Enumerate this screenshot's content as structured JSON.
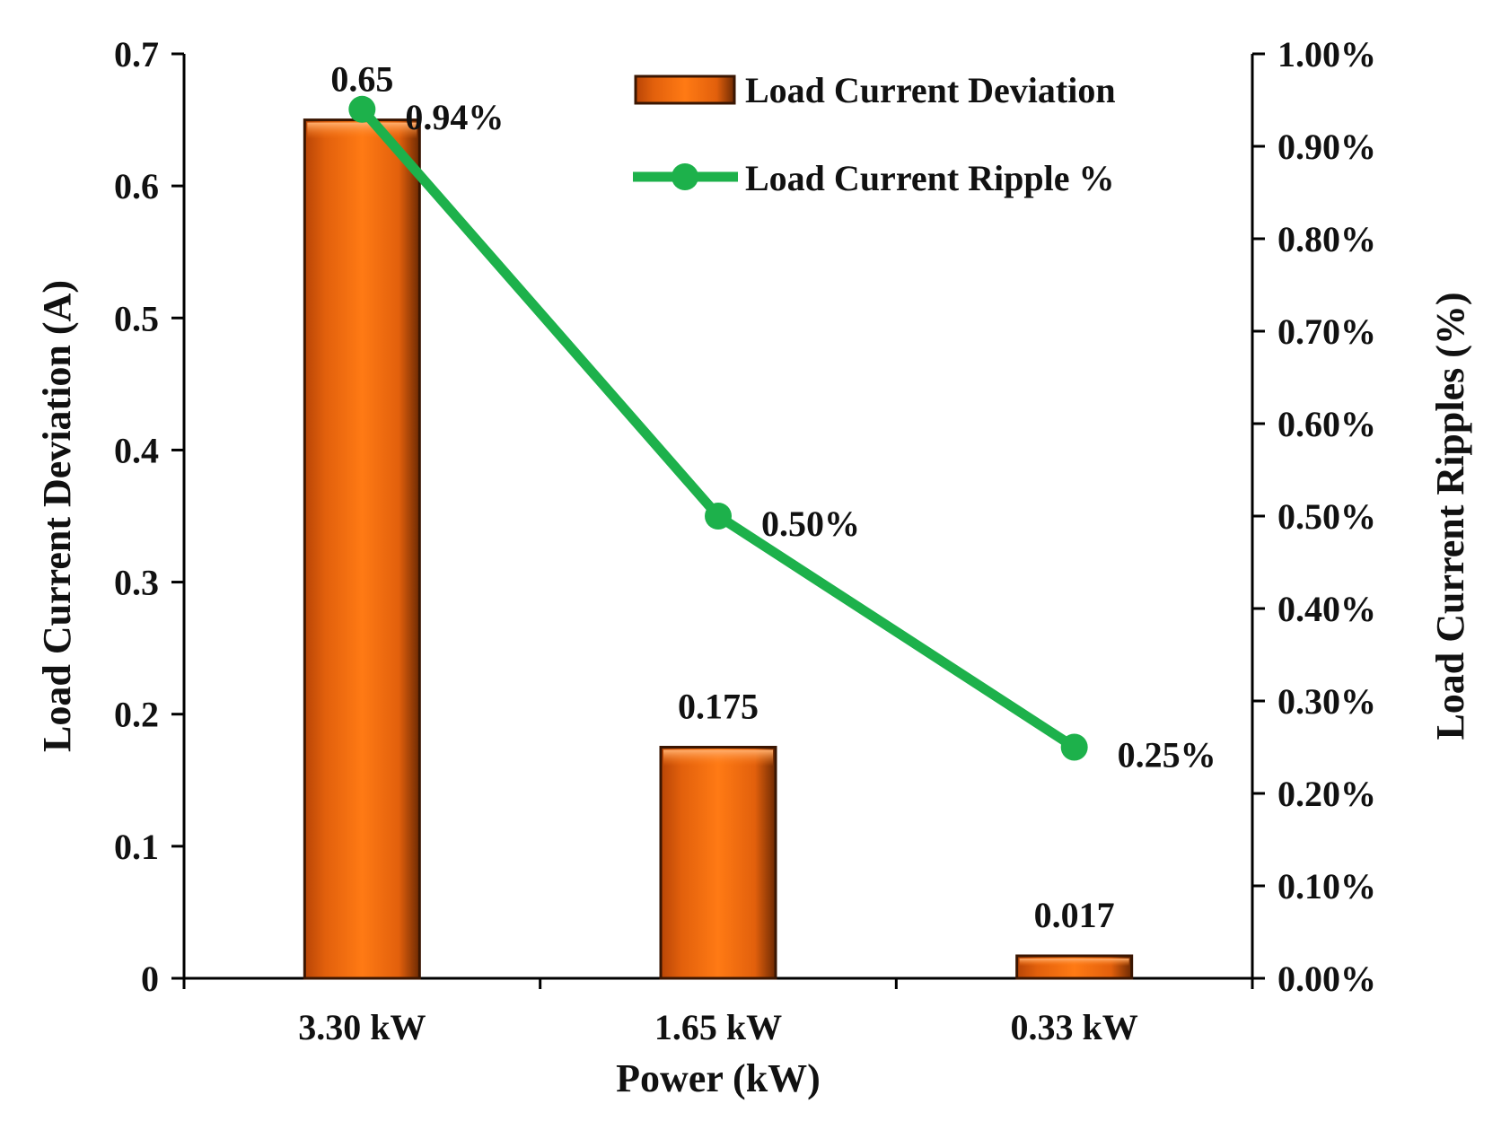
{
  "chart_data": {
    "type": "bar+line",
    "categories": [
      "3.30 kW",
      "1.65 kW",
      "0.33 kW"
    ],
    "xlabel": "Power (kW)",
    "series": [
      {
        "name": "Load Current Deviation",
        "type": "bar",
        "axis": "left",
        "values": [
          0.65,
          0.175,
          0.017
        ],
        "labels": [
          "0.65",
          "0.175",
          "0.017"
        ],
        "color": "#e8630a"
      },
      {
        "name": "Load Current Ripple %",
        "type": "line",
        "axis": "right",
        "values": [
          0.94,
          0.5,
          0.25
        ],
        "labels": [
          "0.94%",
          "0.50%",
          "0.25%"
        ],
        "color": "#1db14b"
      }
    ],
    "left_axis": {
      "label": "Load Current  Deviation (A)",
      "range": [
        0,
        0.7
      ],
      "ticks": [
        "0",
        "0.1",
        "0.2",
        "0.3",
        "0.4",
        "0.5",
        "0.6",
        "0.7"
      ]
    },
    "right_axis": {
      "label": "Load Current  Ripples (%)",
      "range": [
        0,
        1.0
      ],
      "ticks": [
        "0.00%",
        "0.10%",
        "0.20%",
        "0.30%",
        "0.40%",
        "0.50%",
        "0.60%",
        "0.70%",
        "0.80%",
        "0.90%",
        "1.00%"
      ]
    },
    "legend": {
      "position": "top-right",
      "entries": [
        "Load Current Deviation",
        "Load Current Ripple %"
      ]
    },
    "grid": false
  }
}
